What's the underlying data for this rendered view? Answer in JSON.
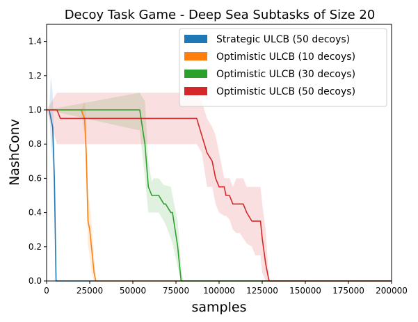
{
  "chart_data": {
    "type": "line",
    "title": "Decoy Task Game - Deep Sea Subtasks of Size 20",
    "xlabel": "samples",
    "ylabel": "NashConv",
    "xlim": [
      0,
      200000
    ],
    "ylim": [
      0,
      1.5
    ],
    "xticks": [
      0,
      25000,
      50000,
      75000,
      100000,
      125000,
      150000,
      175000,
      200000
    ],
    "xtick_labels": [
      "0",
      "25000",
      "50000",
      "75000",
      "100000",
      "125000",
      "150000",
      "175000",
      "200000"
    ],
    "yticks": [
      0.0,
      0.2,
      0.4,
      0.6,
      0.8,
      1.0,
      1.2,
      1.4
    ],
    "ytick_labels": [
      "0.0",
      "0.2",
      "0.4",
      "0.6",
      "0.8",
      "1.0",
      "1.2",
      "1.4"
    ],
    "grid": false,
    "legend_position": "top-right",
    "series": [
      {
        "name": "Strategic ULCB (50 decoys)",
        "color": "#1f77b4",
        "x": [
          0,
          1500,
          2500,
          3500,
          4500,
          5500,
          200000
        ],
        "y": [
          1.0,
          1.0,
          0.95,
          0.9,
          0.6,
          0.0,
          0.0
        ],
        "band_upper": [
          1.0,
          1.0,
          1.2,
          1.1,
          0.8,
          0.0,
          0.0
        ],
        "band_lower": [
          1.0,
          1.0,
          0.8,
          0.7,
          0.4,
          0.0,
          0.0
        ]
      },
      {
        "name": "Optimistic ULCB (10 decoys)",
        "color": "#ff7f0e",
        "x": [
          0,
          20000,
          22000,
          23000,
          24000,
          25000,
          26000,
          27500,
          28500,
          200000
        ],
        "y": [
          1.0,
          1.0,
          0.95,
          0.75,
          0.35,
          0.3,
          0.2,
          0.05,
          0.0,
          0.0
        ],
        "band_upper": [
          1.0,
          1.0,
          1.05,
          0.95,
          0.5,
          0.45,
          0.35,
          0.15,
          0.0,
          0.0
        ],
        "band_lower": [
          1.0,
          1.0,
          0.85,
          0.55,
          0.2,
          0.15,
          0.05,
          0.0,
          0.0,
          0.0
        ]
      },
      {
        "name": "Optimistic ULCB (30 decoys)",
        "color": "#2ca02c",
        "x": [
          0,
          54000,
          57000,
          59000,
          61000,
          62000,
          65000,
          68000,
          69000,
          72000,
          73000,
          76000,
          78000,
          79000,
          200000
        ],
        "y": [
          1.0,
          1.0,
          0.8,
          0.55,
          0.5,
          0.5,
          0.5,
          0.45,
          0.45,
          0.4,
          0.4,
          0.2,
          0.0,
          0.0,
          0.0
        ],
        "band_upper": [
          1.0,
          1.1,
          1.05,
          0.7,
          0.58,
          0.6,
          0.6,
          0.56,
          0.56,
          0.55,
          0.5,
          0.35,
          0.1,
          0.0,
          0.0
        ],
        "band_lower": [
          1.0,
          0.88,
          0.6,
          0.4,
          0.4,
          0.4,
          0.4,
          0.35,
          0.33,
          0.25,
          0.22,
          0.08,
          0.0,
          0.0,
          0.0
        ]
      },
      {
        "name": "Optimistic ULCB (50 decoys)",
        "color": "#d62728",
        "x": [
          0,
          6000,
          8000,
          87000,
          90000,
          93000,
          96000,
          98000,
          100000,
          103000,
          104000,
          106000,
          108000,
          110000,
          112000,
          114000,
          116000,
          119000,
          121000,
          124000,
          125000,
          127000,
          128000,
          129000,
          200000
        ],
        "y": [
          1.0,
          1.0,
          0.95,
          0.95,
          0.85,
          0.75,
          0.7,
          0.6,
          0.55,
          0.55,
          0.5,
          0.5,
          0.45,
          0.45,
          0.45,
          0.45,
          0.4,
          0.35,
          0.35,
          0.35,
          0.25,
          0.1,
          0.05,
          0.0,
          0.0
        ],
        "band_upper": [
          1.0,
          1.1,
          1.1,
          1.1,
          1.05,
          0.95,
          0.9,
          0.85,
          0.75,
          0.6,
          0.6,
          0.6,
          0.55,
          0.6,
          0.6,
          0.6,
          0.55,
          0.55,
          0.55,
          0.55,
          0.45,
          0.3,
          0.15,
          0.0,
          0.0
        ],
        "band_lower": [
          1.0,
          0.8,
          0.8,
          0.8,
          0.75,
          0.55,
          0.55,
          0.45,
          0.4,
          0.38,
          0.38,
          0.36,
          0.3,
          0.28,
          0.28,
          0.25,
          0.22,
          0.2,
          0.15,
          0.15,
          0.05,
          0.0,
          0.0,
          0.0,
          0.0
        ]
      }
    ]
  }
}
